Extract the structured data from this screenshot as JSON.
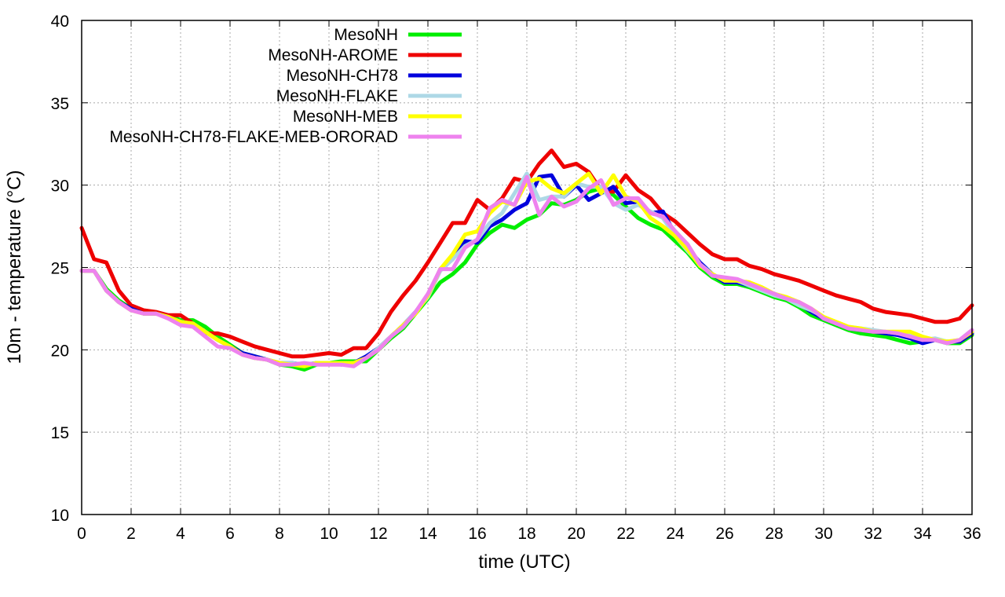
{
  "chart_data": {
    "type": "line",
    "title": "",
    "xlabel": "time (UTC)",
    "ylabel": "10m - temperature (°C)",
    "xlim": [
      0,
      36
    ],
    "ylim": [
      10,
      40
    ],
    "xticks": [
      "0",
      "2",
      "4",
      "6",
      "8",
      "10",
      "12",
      "14",
      "16",
      "18",
      "20",
      "22",
      "24",
      "26",
      "28",
      "30",
      "32",
      "34",
      "36"
    ],
    "yticks": [
      "10",
      "15",
      "20",
      "25",
      "30",
      "35",
      "40"
    ],
    "grid": true,
    "legend_position": "top-left",
    "x": [
      0,
      0.5,
      1,
      1.5,
      2,
      2.5,
      3,
      3.5,
      4,
      4.5,
      5,
      5.5,
      6,
      6.5,
      7,
      7.5,
      8,
      8.5,
      9,
      9.5,
      10,
      10.5,
      11,
      11.5,
      12,
      12.5,
      13,
      13.5,
      14,
      14.5,
      15,
      15.5,
      16,
      16.5,
      17,
      17.5,
      18,
      18.5,
      19,
      19.5,
      20,
      20.5,
      21,
      21.5,
      22,
      22.5,
      23,
      23.5,
      24,
      24.5,
      25,
      25.5,
      26,
      26.5,
      27,
      27.5,
      28,
      28.5,
      29,
      29.5,
      30,
      30.5,
      31,
      31.5,
      32,
      32.5,
      33,
      33.5,
      34,
      34.5,
      35,
      35.5,
      36
    ],
    "series": [
      {
        "name": "MesoNH",
        "color": "#00ee00",
        "values": [
          24.8,
          24.8,
          23.7,
          23.0,
          22.5,
          22.2,
          22.2,
          22.1,
          21.8,
          21.8,
          21.4,
          20.8,
          20.3,
          19.8,
          19.6,
          19.4,
          19.1,
          19.0,
          18.8,
          19.1,
          19.2,
          19.3,
          19.3,
          19.3,
          20.0,
          20.7,
          21.3,
          22.2,
          23.1,
          24.1,
          24.6,
          25.3,
          26.4,
          27.1,
          27.6,
          27.4,
          27.9,
          28.2,
          28.9,
          28.8,
          29.1,
          29.6,
          29.8,
          29.4,
          28.7,
          28.0,
          27.6,
          27.3,
          26.6,
          25.9,
          25.0,
          24.4,
          24.0,
          24.0,
          23.8,
          23.5,
          23.2,
          23.0,
          22.6,
          22.1,
          21.8,
          21.5,
          21.2,
          21.0,
          20.9,
          20.8,
          20.6,
          20.4,
          20.5,
          20.6,
          20.4,
          20.4,
          20.9
        ]
      },
      {
        "name": "MesoNH-AROME",
        "color": "#ee0000",
        "values": [
          27.4,
          25.5,
          25.3,
          23.6,
          22.7,
          22.4,
          22.3,
          22.1,
          22.1,
          21.6,
          21.0,
          21.0,
          20.8,
          20.5,
          20.2,
          20.0,
          19.8,
          19.6,
          19.6,
          19.7,
          19.8,
          19.7,
          20.1,
          20.1,
          21.0,
          22.3,
          23.3,
          24.2,
          25.3,
          26.5,
          27.7,
          27.7,
          29.1,
          28.5,
          29.2,
          30.4,
          30.2,
          31.3,
          32.1,
          31.1,
          31.3,
          30.8,
          29.7,
          29.6,
          30.6,
          29.7,
          29.2,
          28.3,
          27.8,
          27.1,
          26.4,
          25.8,
          25.5,
          25.5,
          25.1,
          24.9,
          24.6,
          24.4,
          24.2,
          23.9,
          23.6,
          23.3,
          23.1,
          22.9,
          22.5,
          22.3,
          22.2,
          22.1,
          21.9,
          21.7,
          21.7,
          21.9,
          22.7
        ]
      },
      {
        "name": "MesoNH-CH78",
        "color": "#0000dd",
        "values": [
          24.8,
          24.8,
          23.6,
          22.9,
          22.5,
          22.2,
          22.2,
          22.0,
          21.7,
          21.6,
          21.1,
          20.6,
          20.2,
          19.8,
          19.6,
          19.4,
          19.2,
          19.2,
          19.1,
          19.2,
          19.2,
          19.1,
          19.2,
          19.6,
          20.1,
          20.8,
          21.5,
          22.3,
          23.3,
          24.9,
          25.5,
          26.6,
          26.5,
          27.5,
          27.9,
          28.5,
          28.9,
          30.5,
          30.6,
          29.3,
          30.0,
          29.1,
          29.5,
          29.9,
          28.9,
          29.0,
          28.3,
          28.4,
          27.0,
          26.2,
          25.3,
          24.6,
          24.1,
          24.1,
          23.9,
          23.7,
          23.4,
          23.1,
          22.8,
          22.3,
          21.9,
          21.6,
          21.3,
          21.2,
          21.1,
          21.0,
          20.9,
          20.7,
          20.4,
          20.6,
          20.5,
          20.5,
          21.0
        ]
      },
      {
        "name": "MesoNH-FLAKE",
        "color": "#add8e6",
        "values": [
          24.8,
          24.8,
          23.6,
          22.9,
          22.4,
          22.2,
          22.2,
          22.0,
          21.7,
          21.6,
          21.1,
          20.6,
          20.2,
          19.7,
          19.5,
          19.4,
          19.2,
          19.2,
          19.1,
          19.2,
          19.2,
          19.2,
          19.2,
          19.5,
          20.1,
          20.8,
          21.5,
          22.3,
          23.2,
          24.8,
          25.5,
          26.3,
          26.7,
          27.7,
          28.3,
          29.5,
          30.7,
          29.1,
          29.3,
          29.3,
          30.1,
          29.9,
          29.9,
          28.9,
          28.5,
          28.8,
          28.4,
          28.0,
          26.9,
          26.0,
          25.2,
          24.6,
          24.2,
          24.2,
          23.9,
          23.6,
          23.3,
          23.1,
          22.7,
          22.4,
          22.0,
          21.6,
          21.4,
          21.3,
          21.2,
          21.1,
          21.0,
          20.9,
          20.6,
          20.7,
          20.5,
          20.6,
          21.2
        ]
      },
      {
        "name": "MesoNH-MEB",
        "color": "#ffff00",
        "values": [
          24.8,
          24.8,
          23.6,
          22.9,
          22.4,
          22.2,
          22.2,
          22.0,
          21.7,
          21.6,
          21.1,
          20.6,
          20.2,
          19.7,
          19.5,
          19.4,
          19.2,
          19.1,
          19.0,
          19.2,
          19.2,
          19.2,
          19.2,
          19.5,
          20.0,
          20.8,
          21.5,
          22.2,
          23.3,
          24.9,
          25.8,
          27.0,
          27.2,
          28.3,
          29.0,
          28.8,
          30.2,
          30.4,
          29.8,
          29.5,
          30.1,
          30.7,
          29.5,
          30.6,
          29.3,
          29.0,
          28.0,
          27.5,
          26.9,
          26.1,
          25.1,
          24.6,
          24.2,
          24.2,
          24.1,
          23.8,
          23.4,
          23.2,
          22.9,
          22.5,
          22.0,
          21.7,
          21.4,
          21.3,
          21.1,
          21.1,
          21.1,
          21.1,
          20.8,
          20.6,
          20.5,
          20.6,
          21.1
        ]
      },
      {
        "name": "MesoNH-CH78-FLAKE-MEB-ORORAD",
        "color": "#ee82ee",
        "values": [
          24.8,
          24.8,
          23.6,
          22.9,
          22.4,
          22.2,
          22.2,
          21.9,
          21.5,
          21.4,
          20.8,
          20.2,
          20.1,
          19.7,
          19.5,
          19.4,
          19.1,
          19.1,
          19.2,
          19.1,
          19.1,
          19.1,
          19.0,
          19.5,
          20.0,
          20.8,
          21.4,
          22.3,
          23.4,
          24.9,
          24.9,
          26.2,
          26.7,
          28.6,
          29.1,
          28.8,
          30.5,
          28.2,
          29.3,
          28.7,
          29.0,
          29.8,
          30.3,
          28.8,
          29.2,
          29.2,
          28.3,
          28.1,
          27.2,
          26.4,
          25.2,
          24.5,
          24.4,
          24.3,
          24.0,
          23.7,
          23.4,
          23.1,
          22.9,
          22.5,
          21.9,
          21.6,
          21.3,
          21.2,
          21.1,
          21.1,
          21.0,
          20.8,
          20.6,
          20.6,
          20.4,
          20.6,
          21.2
        ]
      }
    ]
  }
}
